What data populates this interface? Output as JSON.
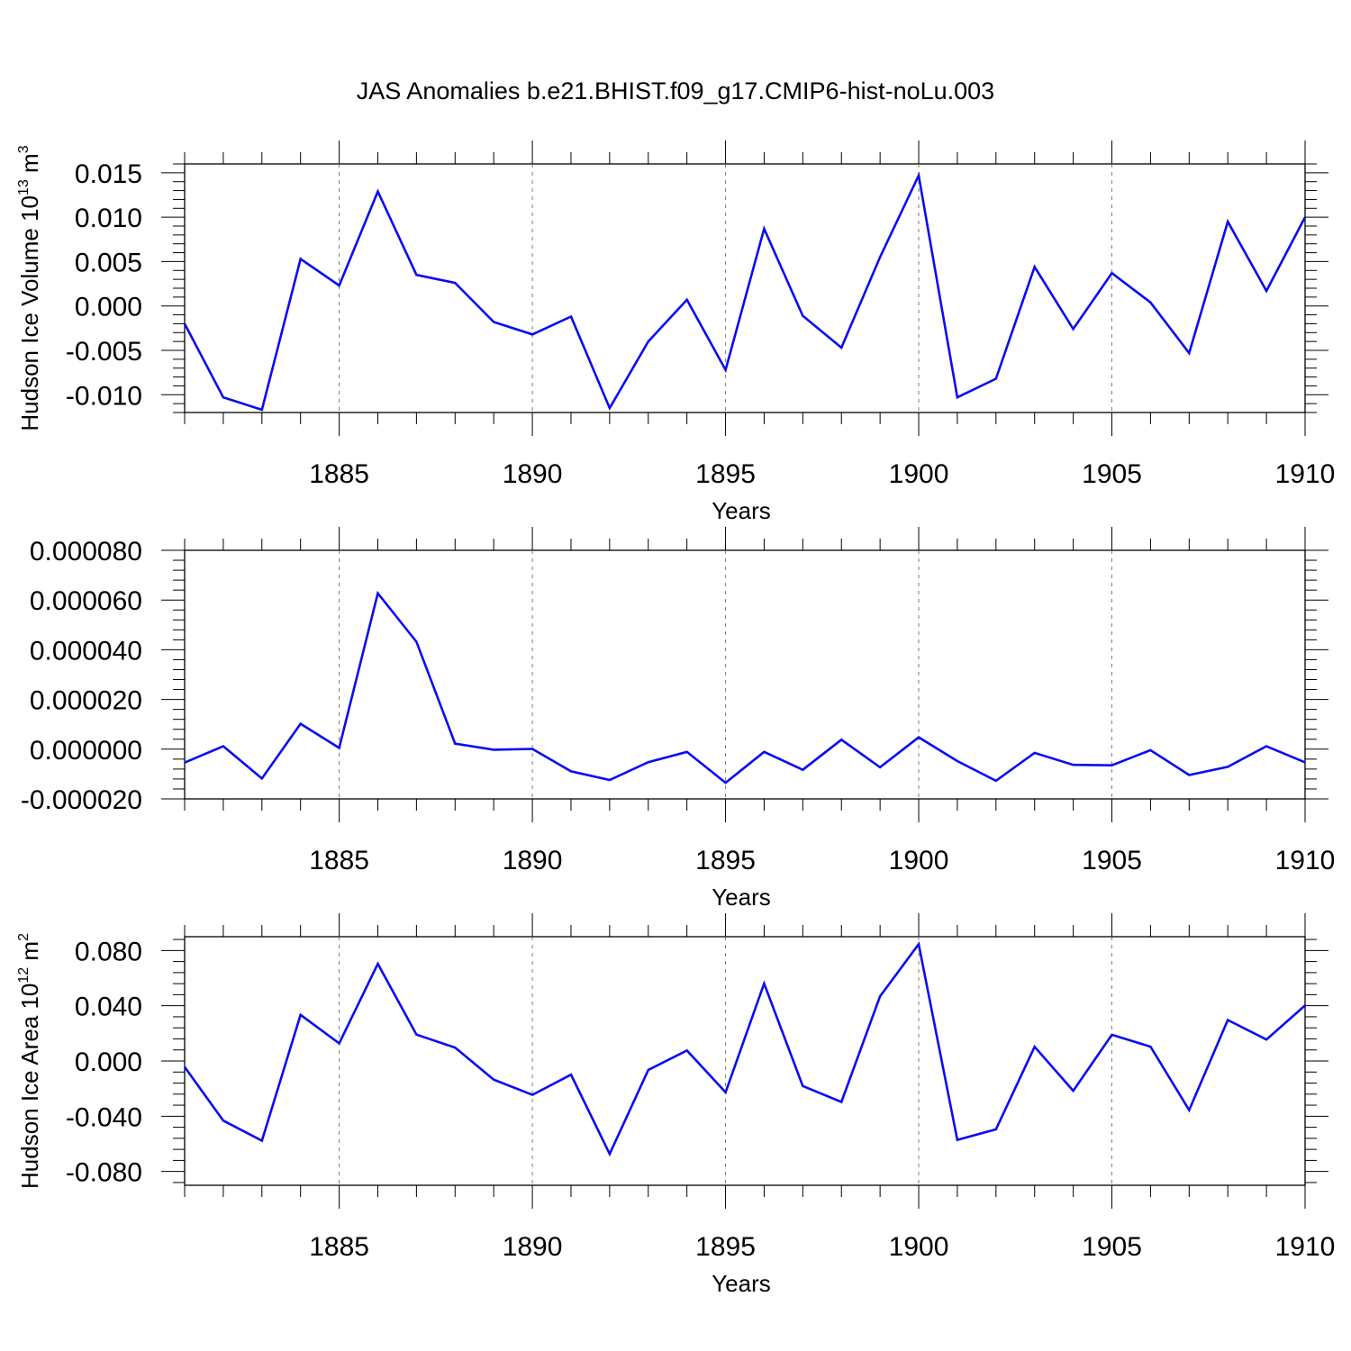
{
  "title": "JAS Anomalies b.e21.BHIST.f09_g17.CMIP6-hist-noLu.003",
  "line_color": "#0a0af5",
  "chart_data": [
    {
      "type": "line",
      "title": "JAS Anomalies b.e21.BHIST.f09_g17.CMIP6-hist-noLu.003",
      "xlabel": "Years",
      "ylabel": "Hudson Ice Volume 10",
      "ylabel_sup": "13",
      "ylabel_unit": " m",
      "ylabel_unit_sup": "3",
      "xlim": [
        1881,
        1910
      ],
      "ylim": [
        -0.012,
        0.016
      ],
      "xticks": [
        1885,
        1890,
        1895,
        1900,
        1905,
        1910
      ],
      "xtick_labels": [
        "1885",
        "1890",
        "1895",
        "1900",
        "1905",
        "1910"
      ],
      "yticks": [
        -0.01,
        -0.005,
        0.0,
        0.005,
        0.01,
        0.015
      ],
      "ytick_labels": [
        "-0.010",
        "-0.005",
        "0.000",
        "0.005",
        "0.010",
        "0.015"
      ],
      "grid": "vertical dashed at major x ticks",
      "x": [
        1881,
        1882,
        1883,
        1884,
        1885,
        1886,
        1887,
        1888,
        1889,
        1890,
        1891,
        1892,
        1893,
        1894,
        1895,
        1896,
        1897,
        1898,
        1899,
        1900,
        1901,
        1902,
        1903,
        1904,
        1905,
        1906,
        1907,
        1908,
        1909,
        1910
      ],
      "values": [
        -0.002,
        -0.0103,
        -0.0117,
        0.0053,
        0.0023,
        0.0129,
        0.0035,
        0.0026,
        -0.0018,
        -0.0032,
        -0.0012,
        -0.0115,
        -0.004,
        0.0007,
        -0.0072,
        0.0087,
        -0.0011,
        -0.0047,
        0.0055,
        0.0147,
        -0.0103,
        -0.0082,
        0.0044,
        -0.0026,
        0.0037,
        0.0004,
        -0.0053,
        0.0095,
        0.0017,
        0.01
      ]
    },
    {
      "type": "line",
      "xlabel": "Years",
      "ylabel": "",
      "xlim": [
        1881,
        1910
      ],
      "ylim": [
        -2e-05,
        8e-05
      ],
      "xticks": [
        1885,
        1890,
        1895,
        1900,
        1905,
        1910
      ],
      "xtick_labels": [
        "1885",
        "1890",
        "1895",
        "1900",
        "1905",
        "1910"
      ],
      "yticks": [
        -2e-05,
        0.0,
        2e-05,
        4e-05,
        6e-05,
        8e-05
      ],
      "ytick_labels": [
        "-0.000020",
        "0.000000",
        "0.000020",
        "0.000040",
        "0.000060",
        "0.000080"
      ],
      "grid": "vertical dashed at major x ticks",
      "x": [
        1881,
        1882,
        1883,
        1884,
        1885,
        1886,
        1887,
        1888,
        1889,
        1890,
        1891,
        1892,
        1893,
        1894,
        1895,
        1896,
        1897,
        1898,
        1899,
        1900,
        1901,
        1902,
        1903,
        1904,
        1905,
        1906,
        1907,
        1908,
        1909,
        1910
      ],
      "values": [
        -5.4e-06,
        1.2e-06,
        -1.18e-05,
        1.02e-05,
        5e-07,
        6.27e-05,
        4.32e-05,
        2.2e-06,
        -2e-07,
        1e-07,
        -8.9e-06,
        -1.24e-05,
        -5.2e-06,
        -1.1e-06,
        -1.35e-05,
        -1.1e-06,
        -8.3e-06,
        3.8e-06,
        -7.3e-06,
        4.8e-06,
        -4.8e-06,
        -1.27e-05,
        -1.5e-06,
        -6.3e-06,
        -6.5e-06,
        -4e-07,
        -1.04e-05,
        -7.1e-06,
        1.2e-06,
        -5.3e-06
      ]
    },
    {
      "type": "line",
      "xlabel": "Years",
      "ylabel": "Hudson Ice Area 10",
      "ylabel_sup": "12",
      "ylabel_unit": " m",
      "ylabel_unit_sup": "2",
      "xlim": [
        1881,
        1910
      ],
      "ylim": [
        -0.09,
        0.09
      ],
      "xticks": [
        1885,
        1890,
        1895,
        1900,
        1905,
        1910
      ],
      "xtick_labels": [
        "1885",
        "1890",
        "1895",
        "1900",
        "1905",
        "1910"
      ],
      "yticks": [
        -0.08,
        -0.04,
        0.0,
        0.04,
        0.08
      ],
      "ytick_labels": [
        "-0.080",
        "-0.040",
        "0.000",
        "0.040",
        "0.080"
      ],
      "grid": "vertical dashed at major x ticks",
      "x": [
        1881,
        1882,
        1883,
        1884,
        1885,
        1886,
        1887,
        1888,
        1889,
        1890,
        1891,
        1892,
        1893,
        1894,
        1895,
        1896,
        1897,
        1898,
        1899,
        1900,
        1901,
        1902,
        1903,
        1904,
        1905,
        1906,
        1907,
        1908,
        1909,
        1910
      ],
      "values": [
        -0.0043,
        -0.0432,
        -0.0577,
        0.0334,
        0.0128,
        0.0704,
        0.0191,
        0.0097,
        -0.0135,
        -0.0245,
        -0.0099,
        -0.0673,
        -0.0065,
        0.0076,
        -0.0227,
        0.0561,
        -0.0181,
        -0.0297,
        0.0468,
        0.0846,
        -0.0571,
        -0.0495,
        0.0103,
        -0.0216,
        0.019,
        0.0104,
        -0.0356,
        0.0297,
        0.0155,
        0.0402
      ]
    }
  ]
}
